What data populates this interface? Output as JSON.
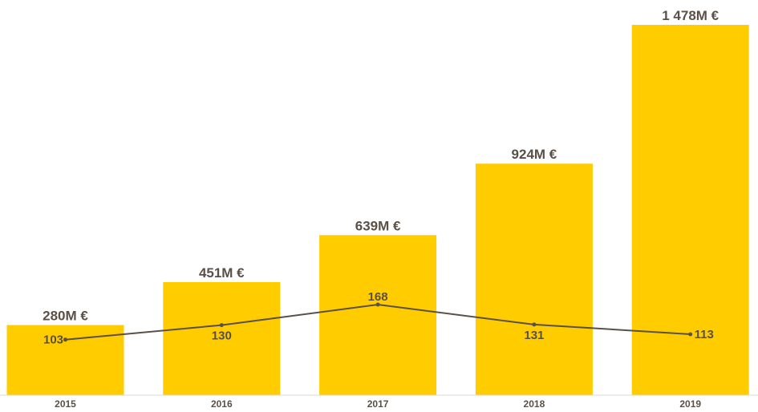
{
  "chart_data": {
    "type": "bar",
    "categories": [
      "2015",
      "2016",
      "2017",
      "2018",
      "2019"
    ],
    "series": [
      {
        "kind": "bar",
        "values": [
          280,
          451,
          639,
          924,
          1478
        ],
        "labels": [
          "280M €",
          "451M €",
          "639M €",
          "924M €",
          "1 478M €"
        ],
        "color": "#ffcc00"
      },
      {
        "kind": "line",
        "values": [
          103,
          130,
          168,
          131,
          113
        ],
        "labels": [
          "103",
          "130",
          "168",
          "131",
          "113"
        ],
        "color": "#5a5047"
      }
    ],
    "title": "",
    "xlabel": "",
    "ylabel": "",
    "bar_ylim": [
      0,
      1478
    ],
    "line_ylim": [
      0,
      168
    ],
    "grid": false,
    "legend": "none",
    "axis_color": "#d9d9d9",
    "text_color": "#5a5047"
  }
}
